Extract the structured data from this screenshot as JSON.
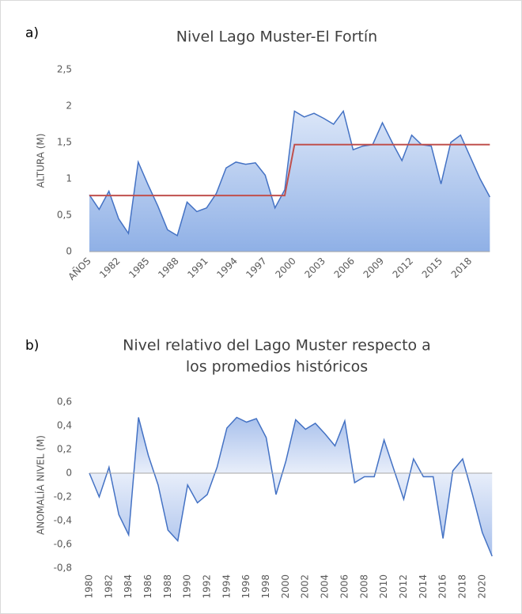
{
  "chart_data": [
    {
      "type": "area",
      "label": "a)",
      "title": [
        "Nivel Lago Muster-El Fortín"
      ],
      "y_label": "ALTURA (M)",
      "categories": [
        "AÑOS",
        null,
        null,
        "1982",
        null,
        null,
        "1985",
        null,
        null,
        "1988",
        null,
        null,
        "1991",
        null,
        null,
        "1994",
        null,
        null,
        "1997",
        null,
        null,
        "2000",
        null,
        null,
        "2003",
        null,
        null,
        "2006",
        null,
        null,
        "2009",
        null,
        null,
        "2012",
        null,
        null,
        "2015",
        null,
        null,
        "2018",
        null,
        null
      ],
      "series": [
        {
          "color": "#4472c4",
          "fill": true,
          "values": [
            0.78,
            0.58,
            0.83,
            0.45,
            0.25,
            1.23,
            0.92,
            0.63,
            0.3,
            0.22,
            0.68,
            0.55,
            0.6,
            0.8,
            1.15,
            1.23,
            1.2,
            1.22,
            1.05,
            0.6,
            0.85,
            1.93,
            1.85,
            1.9,
            1.83,
            1.75,
            1.93,
            1.4,
            1.45,
            1.47,
            1.77,
            1.5,
            1.25,
            1.6,
            1.47,
            1.45,
            0.93,
            1.5,
            1.6,
            1.3,
            1.0,
            0.75
          ]
        },
        {
          "color": "#c0504d",
          "fill": false,
          "values": [
            0.77,
            0.77,
            0.77,
            0.77,
            0.77,
            0.77,
            0.77,
            0.77,
            0.77,
            0.77,
            0.77,
            0.77,
            0.77,
            0.77,
            0.77,
            0.77,
            0.77,
            0.77,
            0.77,
            0.77,
            0.77,
            1.47,
            1.47,
            1.47,
            1.47,
            1.47,
            1.47,
            1.47,
            1.47,
            1.47,
            1.47,
            1.47,
            1.47,
            1.47,
            1.47,
            1.47,
            1.47,
            1.47,
            1.47,
            1.47,
            1.47,
            1.47
          ]
        }
      ],
      "ylim": [
        0,
        2.5
      ],
      "yticks": [
        0,
        {
          "value": 0.5,
          "label": "0,5"
        },
        1,
        {
          "value": 1.5,
          "label": "1,5"
        },
        2,
        {
          "value": 2.5,
          "label": "2,5"
        }
      ],
      "grid": false
    },
    {
      "type": "area",
      "label": "b)",
      "title": [
        "Nivel relativo del Lago Muster respecto a",
        "los promedios históricos"
      ],
      "y_label": "ANOMALÍA NIVEL (M)",
      "categories": [
        "1980",
        null,
        "1982",
        null,
        "1984",
        null,
        "1986",
        null,
        "1988",
        null,
        "1990",
        null,
        "1992",
        null,
        "1994",
        null,
        "1996",
        null,
        "1998",
        null,
        "2000",
        null,
        "2002",
        null,
        "2004",
        null,
        "2006",
        null,
        "2008",
        null,
        "2010",
        null,
        "2012",
        null,
        "2014",
        null,
        "2016",
        null,
        "2018",
        null,
        "2020",
        null
      ],
      "series": [
        {
          "color": "#4472c4",
          "fill": true,
          "values": [
            0.0,
            -0.2,
            0.05,
            -0.35,
            -0.52,
            0.47,
            0.15,
            -0.1,
            -0.48,
            -0.57,
            -0.1,
            -0.25,
            -0.18,
            0.05,
            0.38,
            0.47,
            0.43,
            0.46,
            0.3,
            -0.18,
            0.1,
            0.45,
            0.37,
            0.42,
            0.33,
            0.23,
            0.44,
            -0.08,
            -0.03,
            -0.03,
            0.28,
            0.03,
            -0.22,
            0.12,
            -0.03,
            -0.03,
            -0.55,
            0.02,
            0.12,
            -0.18,
            -0.5,
            -0.7
          ]
        }
      ],
      "ylim": [
        -0.8,
        0.6
      ],
      "yticks": [
        {
          "value": -0.8,
          "label": "-0,8"
        },
        {
          "value": -0.6,
          "label": "-0,6"
        },
        {
          "value": -0.4,
          "label": "-0,4"
        },
        {
          "value": -0.2,
          "label": "-0,2"
        },
        0,
        {
          "value": 0.2,
          "label": "0,2"
        },
        {
          "value": 0.4,
          "label": "0,4"
        },
        {
          "value": 0.6,
          "label": "0,6"
        }
      ],
      "grid": false
    }
  ]
}
